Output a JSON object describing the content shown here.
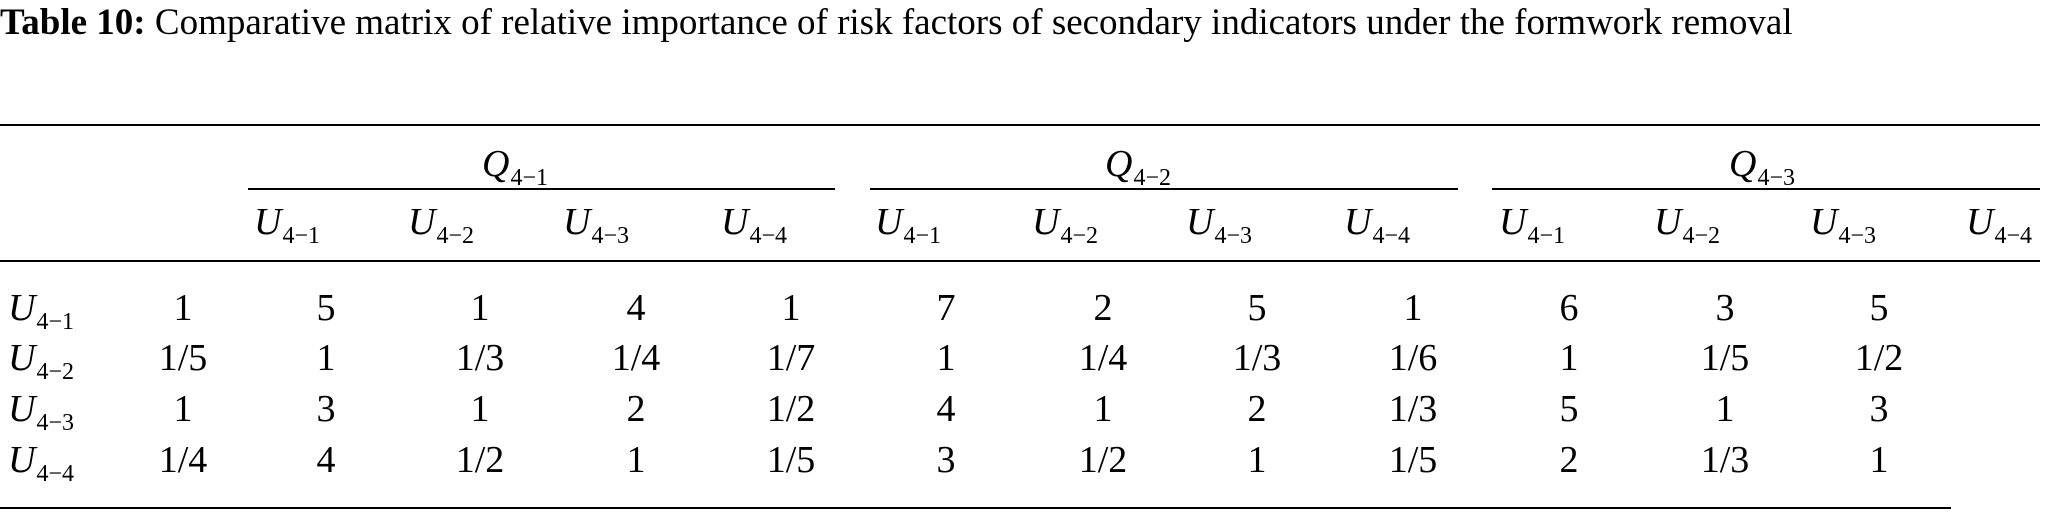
{
  "caption": {
    "label": "Table 10:",
    "text": "Comparative matrix of relative importance of risk factors of secondary indicators under the formwork removal"
  },
  "table": {
    "groups": [
      {
        "symbol": "Q",
        "sub": "4−1"
      },
      {
        "symbol": "Q",
        "sub": "4−2"
      },
      {
        "symbol": "Q",
        "sub": "4−3"
      }
    ],
    "columns": [
      {
        "symbol": "U",
        "sub": "4−1"
      },
      {
        "symbol": "U",
        "sub": "4−2"
      },
      {
        "symbol": "U",
        "sub": "4−3"
      },
      {
        "symbol": "U",
        "sub": "4−4"
      },
      {
        "symbol": "U",
        "sub": "4−1"
      },
      {
        "symbol": "U",
        "sub": "4−2"
      },
      {
        "symbol": "U",
        "sub": "4−3"
      },
      {
        "symbol": "U",
        "sub": "4−4"
      },
      {
        "symbol": "U",
        "sub": "4−1"
      },
      {
        "symbol": "U",
        "sub": "4−2"
      },
      {
        "symbol": "U",
        "sub": "4−3"
      },
      {
        "symbol": "U",
        "sub": "4−4"
      }
    ],
    "rows": [
      {
        "symbol": "U",
        "sub": "4−1",
        "values": [
          "1",
          "5",
          "1",
          "4",
          "1",
          "7",
          "2",
          "5",
          "1",
          "6",
          "3",
          "5"
        ]
      },
      {
        "symbol": "U",
        "sub": "4−2",
        "values": [
          "1/5",
          "1",
          "1/3",
          "1/4",
          "1/7",
          "1",
          "1/4",
          "1/3",
          "1/6",
          "1",
          "1/5",
          "1/2"
        ]
      },
      {
        "symbol": "U",
        "sub": "4−3",
        "values": [
          "1",
          "3",
          "1",
          "2",
          "1/2",
          "4",
          "1",
          "2",
          "1/3",
          "5",
          "1",
          "3"
        ]
      },
      {
        "symbol": "U",
        "sub": "4−4",
        "values": [
          "1/4",
          "4",
          "1/2",
          "1",
          "1/5",
          "3",
          "1/2",
          "1",
          "1/5",
          "2",
          "1/3",
          "1"
        ]
      }
    ]
  }
}
